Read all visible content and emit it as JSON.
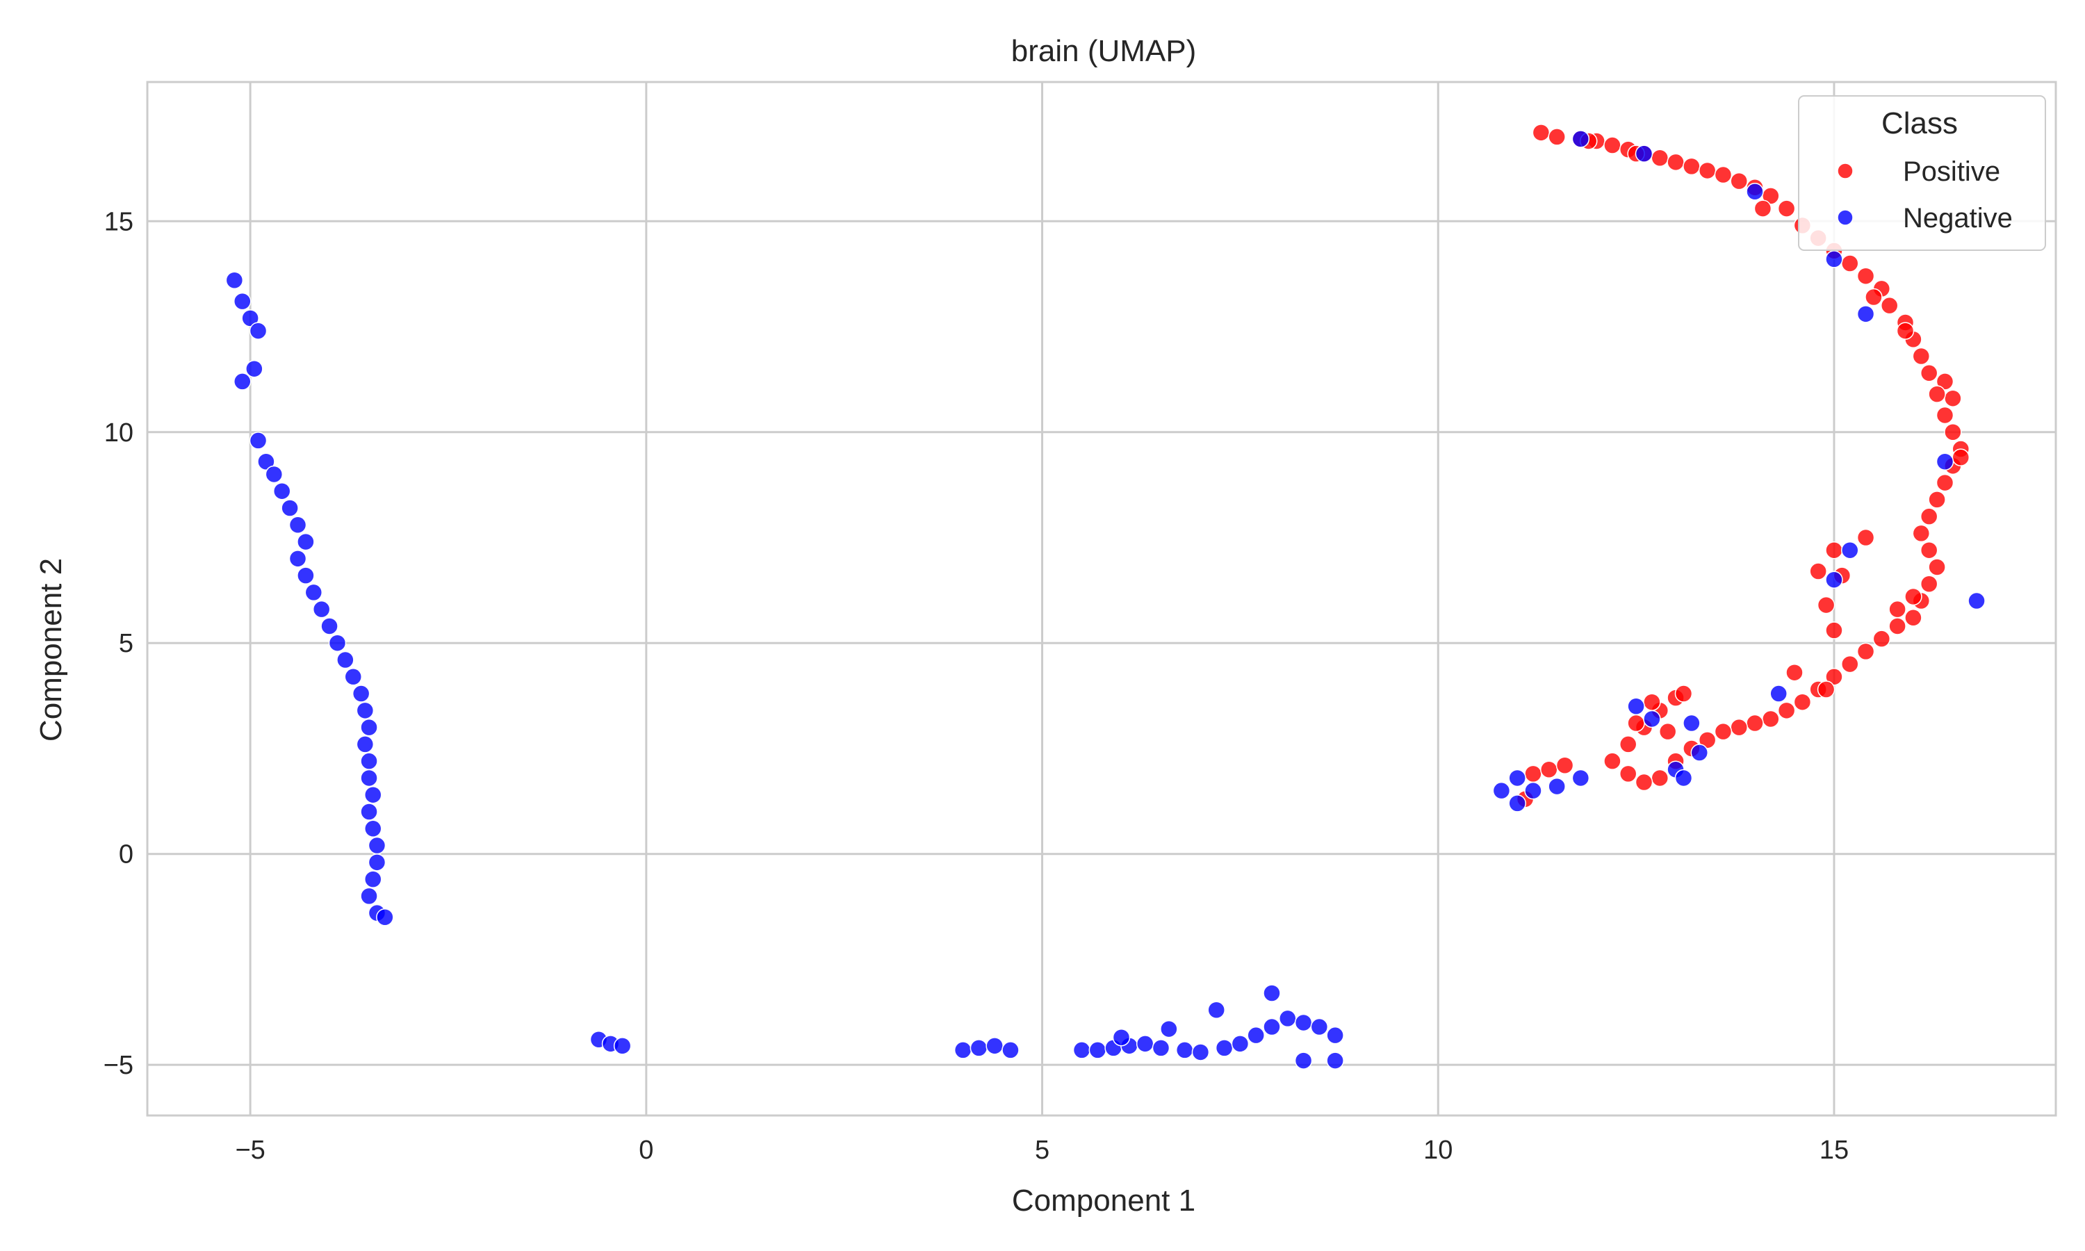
{
  "chart_data": {
    "type": "scatter",
    "title": "brain (UMAP)",
    "xlabel": "Component 1",
    "ylabel": "Component 2",
    "xlim": [
      -6.3,
      17.8
    ],
    "ylim": [
      -6.2,
      18.3
    ],
    "xticks": [
      -5,
      0,
      5,
      10,
      15
    ],
    "yticks": [
      -5,
      0,
      5,
      10,
      15
    ],
    "xtick_labels": [
      "−5",
      "0",
      "5",
      "10",
      "15"
    ],
    "ytick_labels": [
      "−5",
      "0",
      "5",
      "10",
      "15"
    ],
    "grid": true,
    "legend": {
      "title": "Class",
      "placement": "top-right"
    },
    "series": [
      {
        "name": "Positive",
        "color": "#ff0000",
        "points": [
          [
            11.3,
            17.1
          ],
          [
            11.5,
            17.0
          ],
          [
            11.8,
            16.95
          ],
          [
            12.0,
            16.9
          ],
          [
            12.2,
            16.8
          ],
          [
            12.4,
            16.7
          ],
          [
            12.6,
            16.6
          ],
          [
            12.8,
            16.5
          ],
          [
            13.0,
            16.4
          ],
          [
            13.2,
            16.3
          ],
          [
            13.4,
            16.2
          ],
          [
            13.6,
            16.1
          ],
          [
            13.8,
            15.95
          ],
          [
            14.0,
            15.8
          ],
          [
            14.2,
            15.6
          ],
          [
            14.4,
            15.3
          ],
          [
            14.6,
            14.9
          ],
          [
            14.8,
            14.6
          ],
          [
            15.0,
            14.3
          ],
          [
            15.2,
            14.0
          ],
          [
            15.4,
            13.7
          ],
          [
            15.6,
            13.4
          ],
          [
            15.7,
            13.0
          ],
          [
            15.9,
            12.6
          ],
          [
            16.0,
            12.2
          ],
          [
            16.1,
            11.8
          ],
          [
            16.2,
            11.4
          ],
          [
            16.4,
            11.2
          ],
          [
            16.5,
            10.8
          ],
          [
            16.4,
            10.4
          ],
          [
            16.5,
            10.0
          ],
          [
            16.6,
            9.6
          ],
          [
            16.5,
            9.2
          ],
          [
            16.4,
            8.8
          ],
          [
            16.3,
            8.4
          ],
          [
            16.2,
            8.0
          ],
          [
            16.1,
            7.6
          ],
          [
            16.2,
            7.2
          ],
          [
            16.3,
            6.8
          ],
          [
            16.2,
            6.4
          ],
          [
            16.1,
            6.0
          ],
          [
            16.0,
            5.6
          ],
          [
            15.8,
            5.4
          ],
          [
            15.6,
            5.1
          ],
          [
            15.4,
            4.8
          ],
          [
            15.2,
            4.5
          ],
          [
            15.0,
            4.2
          ],
          [
            14.8,
            3.9
          ],
          [
            14.6,
            3.6
          ],
          [
            14.4,
            3.4
          ],
          [
            14.2,
            3.2
          ],
          [
            14.0,
            3.1
          ],
          [
            13.8,
            3.0
          ],
          [
            13.6,
            2.9
          ],
          [
            13.4,
            2.7
          ],
          [
            13.2,
            2.5
          ],
          [
            13.0,
            2.2
          ],
          [
            12.8,
            1.8
          ],
          [
            12.6,
            1.7
          ],
          [
            12.4,
            1.9
          ],
          [
            12.2,
            2.2
          ],
          [
            12.4,
            2.6
          ],
          [
            12.6,
            3.0
          ],
          [
            12.8,
            3.4
          ],
          [
            13.0,
            3.7
          ],
          [
            12.7,
            3.6
          ],
          [
            11.1,
            1.3
          ],
          [
            11.2,
            1.9
          ],
          [
            11.4,
            2.0
          ],
          [
            11.6,
            2.1
          ],
          [
            14.8,
            6.7
          ],
          [
            15.0,
            7.2
          ],
          [
            15.1,
            6.6
          ],
          [
            14.9,
            5.9
          ],
          [
            15.0,
            5.3
          ],
          [
            15.4,
            7.5
          ],
          [
            15.8,
            5.8
          ],
          [
            16.0,
            6.1
          ],
          [
            14.5,
            4.3
          ],
          [
            14.9,
            3.9
          ],
          [
            12.5,
            3.1
          ],
          [
            13.1,
            3.8
          ],
          [
            12.9,
            2.9
          ],
          [
            15.9,
            12.4
          ],
          [
            16.3,
            10.9
          ],
          [
            16.6,
            9.4
          ],
          [
            12.5,
            16.6
          ],
          [
            11.9,
            16.9
          ],
          [
            14.1,
            15.3
          ],
          [
            15.5,
            13.2
          ]
        ]
      },
      {
        "name": "Negative",
        "color": "#0000ff",
        "points": [
          [
            -5.2,
            13.6
          ],
          [
            -5.1,
            13.1
          ],
          [
            -5.0,
            12.7
          ],
          [
            -4.9,
            12.4
          ],
          [
            -4.95,
            11.5
          ],
          [
            -5.1,
            11.2
          ],
          [
            -4.9,
            9.8
          ],
          [
            -4.8,
            9.3
          ],
          [
            -4.7,
            9.0
          ],
          [
            -4.6,
            8.6
          ],
          [
            -4.5,
            8.2
          ],
          [
            -4.4,
            7.8
          ],
          [
            -4.3,
            7.4
          ],
          [
            -4.4,
            7.0
          ],
          [
            -4.3,
            6.6
          ],
          [
            -4.2,
            6.2
          ],
          [
            -4.1,
            5.8
          ],
          [
            -4.0,
            5.4
          ],
          [
            -3.9,
            5.0
          ],
          [
            -3.8,
            4.6
          ],
          [
            -3.7,
            4.2
          ],
          [
            -3.6,
            3.8
          ],
          [
            -3.55,
            3.4
          ],
          [
            -3.5,
            3.0
          ],
          [
            -3.55,
            2.6
          ],
          [
            -3.5,
            2.2
          ],
          [
            -3.5,
            1.8
          ],
          [
            -3.45,
            1.4
          ],
          [
            -3.5,
            1.0
          ],
          [
            -3.45,
            0.6
          ],
          [
            -3.4,
            0.2
          ],
          [
            -3.4,
            -0.2
          ],
          [
            -3.45,
            -0.6
          ],
          [
            -3.5,
            -1.0
          ],
          [
            -3.4,
            -1.4
          ],
          [
            -3.3,
            -1.5
          ],
          [
            -0.6,
            -4.4
          ],
          [
            -0.45,
            -4.5
          ],
          [
            -0.3,
            -4.55
          ],
          [
            4.0,
            -4.65
          ],
          [
            4.2,
            -4.6
          ],
          [
            4.4,
            -4.55
          ],
          [
            4.6,
            -4.65
          ],
          [
            5.5,
            -4.65
          ],
          [
            5.7,
            -4.65
          ],
          [
            5.9,
            -4.6
          ],
          [
            6.1,
            -4.55
          ],
          [
            6.3,
            -4.5
          ],
          [
            6.5,
            -4.6
          ],
          [
            6.8,
            -4.65
          ],
          [
            7.0,
            -4.7
          ],
          [
            7.3,
            -4.6
          ],
          [
            7.5,
            -4.5
          ],
          [
            7.7,
            -4.3
          ],
          [
            7.9,
            -4.1
          ],
          [
            8.1,
            -3.9
          ],
          [
            8.3,
            -4.0
          ],
          [
            8.5,
            -4.1
          ],
          [
            8.7,
            -4.3
          ],
          [
            6.0,
            -4.35
          ],
          [
            6.6,
            -4.15
          ],
          [
            7.2,
            -3.7
          ],
          [
            7.9,
            -3.3
          ],
          [
            8.7,
            -4.9
          ],
          [
            8.3,
            -4.9
          ],
          [
            10.8,
            1.5
          ],
          [
            11.0,
            1.2
          ],
          [
            11.2,
            1.5
          ],
          [
            11.5,
            1.6
          ],
          [
            11.8,
            1.8
          ],
          [
            11.0,
            1.8
          ],
          [
            12.6,
            16.6
          ],
          [
            14.0,
            15.7
          ],
          [
            15.0,
            14.1
          ],
          [
            15.4,
            12.8
          ],
          [
            11.8,
            16.95
          ],
          [
            13.2,
            3.1
          ],
          [
            13.0,
            2.0
          ],
          [
            13.1,
            1.8
          ],
          [
            13.3,
            2.4
          ],
          [
            14.3,
            3.8
          ],
          [
            15.2,
            7.2
          ],
          [
            15.0,
            6.5
          ],
          [
            16.4,
            9.3
          ],
          [
            16.8,
            6.0
          ],
          [
            12.7,
            3.2
          ],
          [
            12.5,
            3.5
          ]
        ]
      }
    ]
  }
}
